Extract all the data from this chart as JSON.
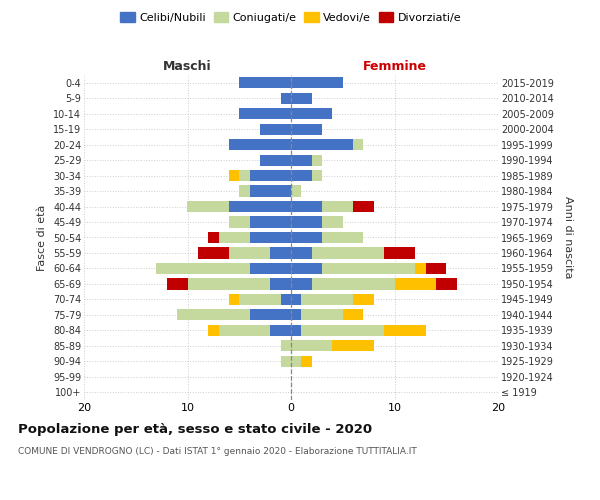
{
  "age_groups": [
    "100+",
    "95-99",
    "90-94",
    "85-89",
    "80-84",
    "75-79",
    "70-74",
    "65-69",
    "60-64",
    "55-59",
    "50-54",
    "45-49",
    "40-44",
    "35-39",
    "30-34",
    "25-29",
    "20-24",
    "15-19",
    "10-14",
    "5-9",
    "0-4"
  ],
  "birth_years": [
    "≤ 1919",
    "1920-1924",
    "1925-1929",
    "1930-1934",
    "1935-1939",
    "1940-1944",
    "1945-1949",
    "1950-1954",
    "1955-1959",
    "1960-1964",
    "1965-1969",
    "1970-1974",
    "1975-1979",
    "1980-1984",
    "1985-1989",
    "1990-1994",
    "1995-1999",
    "2000-2004",
    "2005-2009",
    "2010-2014",
    "2015-2019"
  ],
  "male": {
    "celibi": [
      0,
      0,
      0,
      0,
      2,
      4,
      1,
      2,
      4,
      2,
      4,
      4,
      6,
      4,
      4,
      3,
      6,
      3,
      5,
      1,
      5
    ],
    "coniugati": [
      0,
      0,
      1,
      1,
      5,
      7,
      4,
      8,
      9,
      4,
      3,
      2,
      4,
      1,
      1,
      0,
      0,
      0,
      0,
      0,
      0
    ],
    "vedovi": [
      0,
      0,
      0,
      0,
      1,
      0,
      1,
      0,
      0,
      0,
      0,
      0,
      0,
      0,
      1,
      0,
      0,
      0,
      0,
      0,
      0
    ],
    "divorziati": [
      0,
      0,
      0,
      0,
      0,
      0,
      0,
      2,
      0,
      3,
      1,
      0,
      0,
      0,
      0,
      0,
      0,
      0,
      0,
      0,
      0
    ]
  },
  "female": {
    "nubili": [
      0,
      0,
      0,
      0,
      1,
      1,
      1,
      2,
      3,
      2,
      3,
      3,
      3,
      0,
      2,
      2,
      6,
      3,
      4,
      2,
      5
    ],
    "coniugate": [
      0,
      0,
      1,
      4,
      8,
      4,
      5,
      8,
      9,
      7,
      4,
      2,
      3,
      1,
      1,
      1,
      1,
      0,
      0,
      0,
      0
    ],
    "vedove": [
      0,
      0,
      1,
      4,
      4,
      2,
      2,
      4,
      1,
      0,
      0,
      0,
      0,
      0,
      0,
      0,
      0,
      0,
      0,
      0,
      0
    ],
    "divorziate": [
      0,
      0,
      0,
      0,
      0,
      0,
      0,
      2,
      2,
      3,
      0,
      0,
      2,
      0,
      0,
      0,
      0,
      0,
      0,
      0,
      0
    ]
  },
  "color_celibi": "#4472c4",
  "color_coniugati": "#c5d89d",
  "color_vedovi": "#ffc000",
  "color_divorziati": "#c00000",
  "title": "Popolazione per età, sesso e stato civile - 2020",
  "subtitle": "COMUNE DI VENDROGNO (LC) - Dati ISTAT 1° gennaio 2020 - Elaborazione TUTTITALIA.IT",
  "xlabel_left": "Maschi",
  "xlabel_right": "Femmine",
  "ylabel_left": "Fasce di età",
  "ylabel_right": "Anni di nascita",
  "xlim": 20,
  "legend_labels": [
    "Celibi/Nubili",
    "Coniugati/e",
    "Vedovi/e",
    "Divorziati/e"
  ],
  "bg_color": "#ffffff",
  "grid_color": "#cccccc",
  "text_color_dark": "#333333",
  "femmine_color": "#cc0000"
}
